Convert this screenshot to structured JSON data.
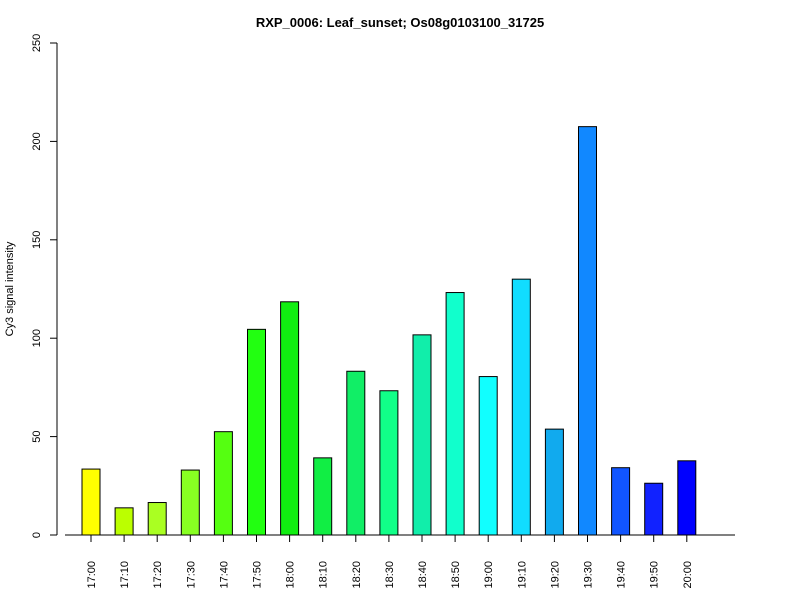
{
  "chart_data": {
    "type": "bar",
    "title": "RXP_0006: Leaf_sunset; Os08g0103100_31725",
    "xlabel": "",
    "ylabel": "Cy3 signal intensity",
    "ylim": [
      0,
      250
    ],
    "yticks": [
      0,
      50,
      100,
      150,
      200,
      250
    ],
    "grid": false,
    "legend": "none",
    "categories": [
      "17:00",
      "17:10",
      "17:20",
      "17:30",
      "17:40",
      "17:50",
      "18:00",
      "18:10",
      "18:20",
      "18:30",
      "18:40",
      "18:50",
      "19:00",
      "19:10",
      "19:20",
      "19:30",
      "19:40",
      "19:50",
      "20:00"
    ],
    "values": [
      33.5,
      13.8,
      16.5,
      33,
      52.5,
      104.5,
      118.5,
      39.2,
      83.2,
      73.3,
      101.7,
      123.2,
      80.5,
      130,
      53.8,
      207.5,
      34.2,
      26.3,
      37.7
    ],
    "colors": [
      "#ffff00",
      "#bbff00",
      "#aaff22",
      "#88ff22",
      "#55ff11",
      "#22ff11",
      "#11ee11",
      "#11ee44",
      "#11ee66",
      "#11ff88",
      "#11eeaa",
      "#11ffcc",
      "#11ffff",
      "#11ddff",
      "#11aaee",
      "#1188ff",
      "#1155ff",
      "#1122ff",
      "#0000ff"
    ]
  }
}
